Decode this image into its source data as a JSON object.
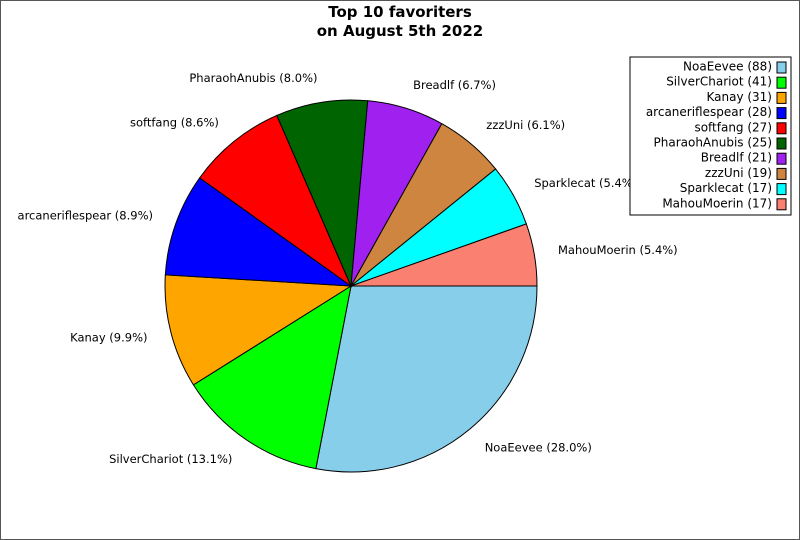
{
  "chart_data": {
    "type": "pie",
    "title_lines": [
      "Top 10 favoriters",
      "on August 5th 2022"
    ],
    "slices": [
      {
        "name": "NoaEevee",
        "value": 88,
        "percent_label": "NoaEevee (28.0%)",
        "legend_label": "NoaEevee (88)",
        "color": "#87ceeb"
      },
      {
        "name": "SilverChariot",
        "value": 41,
        "percent_label": "SilverChariot (13.1%)",
        "legend_label": "SilverChariot (41)",
        "color": "#00ff00"
      },
      {
        "name": "Kanay",
        "value": 31,
        "percent_label": "Kanay (9.9%)",
        "legend_label": "Kanay (31)",
        "color": "#ffa500"
      },
      {
        "name": "arcaneriflespear",
        "value": 28,
        "percent_label": "arcaneriflespear (8.9%)",
        "legend_label": "arcaneriflespear (28)",
        "color": "#0000ff"
      },
      {
        "name": "softfang",
        "value": 27,
        "percent_label": "softfang (8.6%)",
        "legend_label": "softfang (27)",
        "color": "#ff0000"
      },
      {
        "name": "PharaohAnubis",
        "value": 25,
        "percent_label": "PharaohAnubis (8.0%)",
        "legend_label": "PharaohAnubis (25)",
        "color": "#006400"
      },
      {
        "name": "Breadlf",
        "value": 21,
        "percent_label": "Breadlf (6.7%)",
        "legend_label": "Breadlf (21)",
        "color": "#a020f0"
      },
      {
        "name": "zzzUni",
        "value": 19,
        "percent_label": "zzzUni (6.1%)",
        "legend_label": "zzzUni (19)",
        "color": "#cd853f"
      },
      {
        "name": "Sparklecat",
        "value": 17,
        "percent_label": "Sparklecat (5.4%)",
        "legend_label": "Sparklecat (17)",
        "color": "#00ffff"
      },
      {
        "name": "MahouMoerin",
        "value": 17,
        "percent_label": "MahouMoerin (5.4%)",
        "legend_label": "MahouMoerin (17)",
        "color": "#fa8072"
      }
    ],
    "start_direction": "east",
    "rotation": "clockwise",
    "legend_placement": "top-right"
  }
}
